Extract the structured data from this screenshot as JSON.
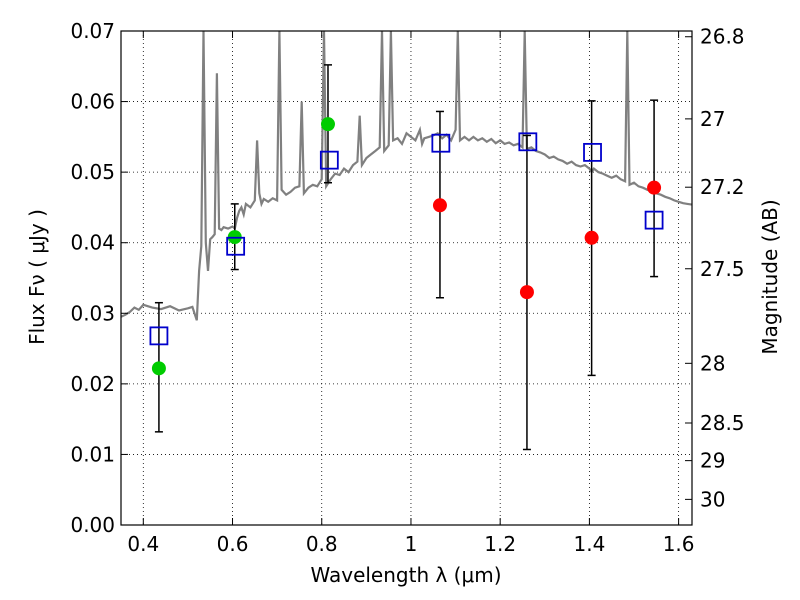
{
  "chart_data": {
    "type": "scatter",
    "xlabel": "Wavelength  λ (μm)",
    "ylabel": "Flux  Fν  ( μJy )",
    "y2label": "Magnitude (AB)",
    "xlim": [
      0.35,
      1.63
    ],
    "ylim": [
      0.0,
      0.07
    ],
    "grid": true,
    "x_ticks": [
      0.4,
      0.6,
      0.8,
      1.0,
      1.2,
      1.4,
      1.6
    ],
    "x_tick_labels": [
      "0.4",
      "0.6",
      "0.8",
      "1",
      "1.2",
      "1.4",
      "1.6"
    ],
    "y_ticks": [
      0.0,
      0.01,
      0.02,
      0.03,
      0.04,
      0.05,
      0.06,
      0.07
    ],
    "y_tick_labels": [
      "0.00",
      "0.01",
      "0.02",
      "0.03",
      "0.04",
      "0.05",
      "0.06",
      "0.07"
    ],
    "y2_ticks": [
      26.8,
      27,
      27.2,
      27.5,
      28,
      28.5,
      29,
      30
    ],
    "y2_tick_labels": [
      "26.8",
      "27",
      "27.2",
      "27.5",
      "28",
      "28.5",
      "29",
      "30"
    ],
    "series": [
      {
        "color": "#00cc00",
        "marker": "circle",
        "points": [
          {
            "x": 0.435,
            "y": 0.0222,
            "yerr_low": 0.0132,
            "yerr_high": 0.0315
          },
          {
            "x": 0.605,
            "y": 0.0408,
            "yerr_low": 0.0362,
            "yerr_high": 0.0455
          },
          {
            "x": 0.814,
            "y": 0.0568,
            "yerr_low": 0.0485,
            "yerr_high": 0.0652
          }
        ]
      },
      {
        "color": "#ff0000",
        "marker": "circle",
        "points": [
          {
            "x": 1.065,
            "y": 0.0453,
            "yerr_low": 0.0322,
            "yerr_high": 0.0586
          },
          {
            "x": 1.26,
            "y": 0.033,
            "yerr_low": 0.0107,
            "yerr_high": 0.0552
          },
          {
            "x": 1.405,
            "y": 0.0407,
            "yerr_low": 0.0212,
            "yerr_high": 0.0601
          },
          {
            "x": 1.545,
            "y": 0.0478,
            "yerr_low": 0.0352,
            "yerr_high": 0.0602
          }
        ]
      },
      {
        "color": "#0000cc",
        "marker": "open-square",
        "points": [
          {
            "x": 0.435,
            "y": 0.0268
          },
          {
            "x": 0.607,
            "y": 0.0395
          },
          {
            "x": 0.817,
            "y": 0.0517
          },
          {
            "x": 1.067,
            "y": 0.0541
          },
          {
            "x": 1.262,
            "y": 0.0543
          },
          {
            "x": 1.407,
            "y": 0.0528
          },
          {
            "x": 1.545,
            "y": 0.0432
          }
        ]
      },
      {
        "color": "#808080",
        "marker": "line",
        "points": [
          [
            0.35,
            0.0295
          ],
          [
            0.36,
            0.0298
          ],
          [
            0.37,
            0.0302
          ],
          [
            0.38,
            0.0308
          ],
          [
            0.39,
            0.0305
          ],
          [
            0.4,
            0.0312
          ],
          [
            0.42,
            0.0308
          ],
          [
            0.44,
            0.0306
          ],
          [
            0.46,
            0.031
          ],
          [
            0.48,
            0.0304
          ],
          [
            0.5,
            0.0307
          ],
          [
            0.51,
            0.0309
          ],
          [
            0.52,
            0.029
          ],
          [
            0.525,
            0.036
          ],
          [
            0.53,
            0.0395
          ],
          [
            0.535,
            0.07
          ],
          [
            0.54,
            0.04
          ],
          [
            0.545,
            0.036
          ],
          [
            0.55,
            0.0405
          ],
          [
            0.555,
            0.0408
          ],
          [
            0.56,
            0.0412
          ],
          [
            0.565,
            0.064
          ],
          [
            0.57,
            0.042
          ],
          [
            0.575,
            0.0418
          ],
          [
            0.58,
            0.0422
          ],
          [
            0.59,
            0.042
          ],
          [
            0.6,
            0.0423
          ],
          [
            0.605,
            0.042
          ],
          [
            0.61,
            0.0435
          ],
          [
            0.615,
            0.0445
          ],
          [
            0.62,
            0.045
          ],
          [
            0.625,
            0.044
          ],
          [
            0.63,
            0.0455
          ],
          [
            0.64,
            0.045
          ],
          [
            0.65,
            0.046
          ],
          [
            0.655,
            0.0545
          ],
          [
            0.66,
            0.047
          ],
          [
            0.665,
            0.0455
          ],
          [
            0.67,
            0.0462
          ],
          [
            0.68,
            0.0458
          ],
          [
            0.69,
            0.0463
          ],
          [
            0.7,
            0.046
          ],
          [
            0.705,
            0.07
          ],
          [
            0.71,
            0.0475
          ],
          [
            0.72,
            0.0468
          ],
          [
            0.73,
            0.0472
          ],
          [
            0.74,
            0.0478
          ],
          [
            0.75,
            0.048
          ],
          [
            0.755,
            0.06
          ],
          [
            0.76,
            0.047
          ],
          [
            0.77,
            0.0478
          ],
          [
            0.78,
            0.0482
          ],
          [
            0.79,
            0.048
          ],
          [
            0.8,
            0.049
          ],
          [
            0.805,
            0.07
          ],
          [
            0.81,
            0.048
          ],
          [
            0.82,
            0.049
          ],
          [
            0.83,
            0.0498
          ],
          [
            0.84,
            0.0496
          ],
          [
            0.85,
            0.0505
          ],
          [
            0.86,
            0.05
          ],
          [
            0.87,
            0.051
          ],
          [
            0.88,
            0.0515
          ],
          [
            0.885,
            0.058
          ],
          [
            0.89,
            0.051
          ],
          [
            0.9,
            0.052
          ],
          [
            0.91,
            0.0525
          ],
          [
            0.92,
            0.053
          ],
          [
            0.93,
            0.0535
          ],
          [
            0.935,
            0.07
          ],
          [
            0.94,
            0.053
          ],
          [
            0.95,
            0.0538
          ],
          [
            0.955,
            0.07
          ],
          [
            0.96,
            0.0545
          ],
          [
            0.97,
            0.0548
          ],
          [
            0.98,
            0.054
          ],
          [
            0.99,
            0.0555
          ],
          [
            1.0,
            0.055
          ],
          [
            1.01,
            0.0545
          ],
          [
            1.02,
            0.056
          ],
          [
            1.025,
            0.054
          ],
          [
            1.03,
            0.0548
          ],
          [
            1.04,
            0.055
          ],
          [
            1.05,
            0.0552
          ],
          [
            1.06,
            0.0555
          ],
          [
            1.07,
            0.0548
          ],
          [
            1.08,
            0.0553
          ],
          [
            1.09,
            0.0545
          ],
          [
            1.1,
            0.056
          ],
          [
            1.105,
            0.07
          ],
          [
            1.11,
            0.0545
          ],
          [
            1.12,
            0.055
          ],
          [
            1.13,
            0.0545
          ],
          [
            1.14,
            0.055
          ],
          [
            1.15,
            0.0545
          ],
          [
            1.16,
            0.0548
          ],
          [
            1.17,
            0.0543
          ],
          [
            1.18,
            0.0547
          ],
          [
            1.19,
            0.0541
          ],
          [
            1.2,
            0.0545
          ],
          [
            1.21,
            0.054
          ],
          [
            1.22,
            0.0542
          ],
          [
            1.23,
            0.0538
          ],
          [
            1.24,
            0.054
          ],
          [
            1.25,
            0.0535
          ],
          [
            1.255,
            0.07
          ],
          [
            1.26,
            0.0533
          ],
          [
            1.27,
            0.0535
          ],
          [
            1.28,
            0.053
          ],
          [
            1.29,
            0.0528
          ],
          [
            1.3,
            0.0525
          ],
          [
            1.31,
            0.052
          ],
          [
            1.32,
            0.0522
          ],
          [
            1.33,
            0.0518
          ],
          [
            1.34,
            0.0516
          ],
          [
            1.35,
            0.0512
          ],
          [
            1.36,
            0.0515
          ],
          [
            1.37,
            0.051
          ],
          [
            1.38,
            0.0508
          ],
          [
            1.39,
            0.051
          ],
          [
            1.4,
            0.0505
          ],
          [
            1.405,
            0.05
          ],
          [
            1.41,
            0.0505
          ],
          [
            1.42,
            0.05
          ],
          [
            1.43,
            0.0498
          ],
          [
            1.44,
            0.0495
          ],
          [
            1.45,
            0.0492
          ],
          [
            1.46,
            0.0495
          ],
          [
            1.47,
            0.049
          ],
          [
            1.48,
            0.0487
          ],
          [
            1.485,
            0.07
          ],
          [
            1.49,
            0.0482
          ],
          [
            1.5,
            0.0485
          ],
          [
            1.51,
            0.048
          ],
          [
            1.52,
            0.0478
          ],
          [
            1.53,
            0.0475
          ],
          [
            1.54,
            0.0473
          ],
          [
            1.55,
            0.047
          ],
          [
            1.56,
            0.0468
          ],
          [
            1.57,
            0.0465
          ],
          [
            1.58,
            0.0463
          ],
          [
            1.59,
            0.046
          ],
          [
            1.6,
            0.0458
          ],
          [
            1.61,
            0.0456
          ],
          [
            1.62,
            0.0455
          ],
          [
            1.63,
            0.0454
          ]
        ]
      }
    ]
  }
}
